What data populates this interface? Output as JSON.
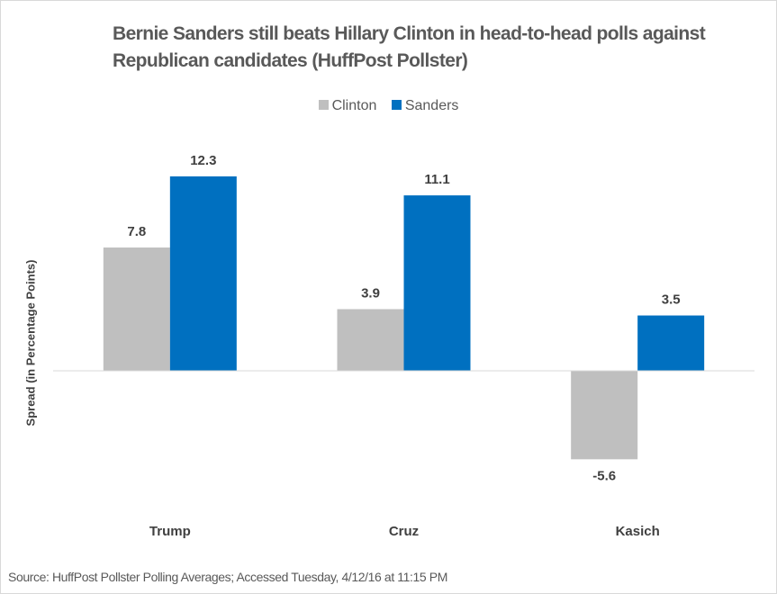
{
  "chart_data": {
    "type": "bar",
    "title": "Bernie Sanders still beats Hillary Clinton in head-to-head polls against Republican candidates (HuffPost Pollster)",
    "ylabel": "Spread (in Percentage Points)",
    "xlabel": "",
    "categories": [
      "Trump",
      "Cruz",
      "Kasich"
    ],
    "series": [
      {
        "name": "Clinton",
        "color": "#bfbfbf",
        "values": [
          7.8,
          3.9,
          -5.6
        ]
      },
      {
        "name": "Sanders",
        "color": "#0070c0",
        "values": [
          12.3,
          11.1,
          3.5
        ]
      }
    ],
    "legend": "top",
    "grid": false,
    "data_labels": true
  },
  "source": "Source: HuffPost Pollster Polling Averages; Accessed Tuesday, 4/12/16 at 11:15 PM"
}
